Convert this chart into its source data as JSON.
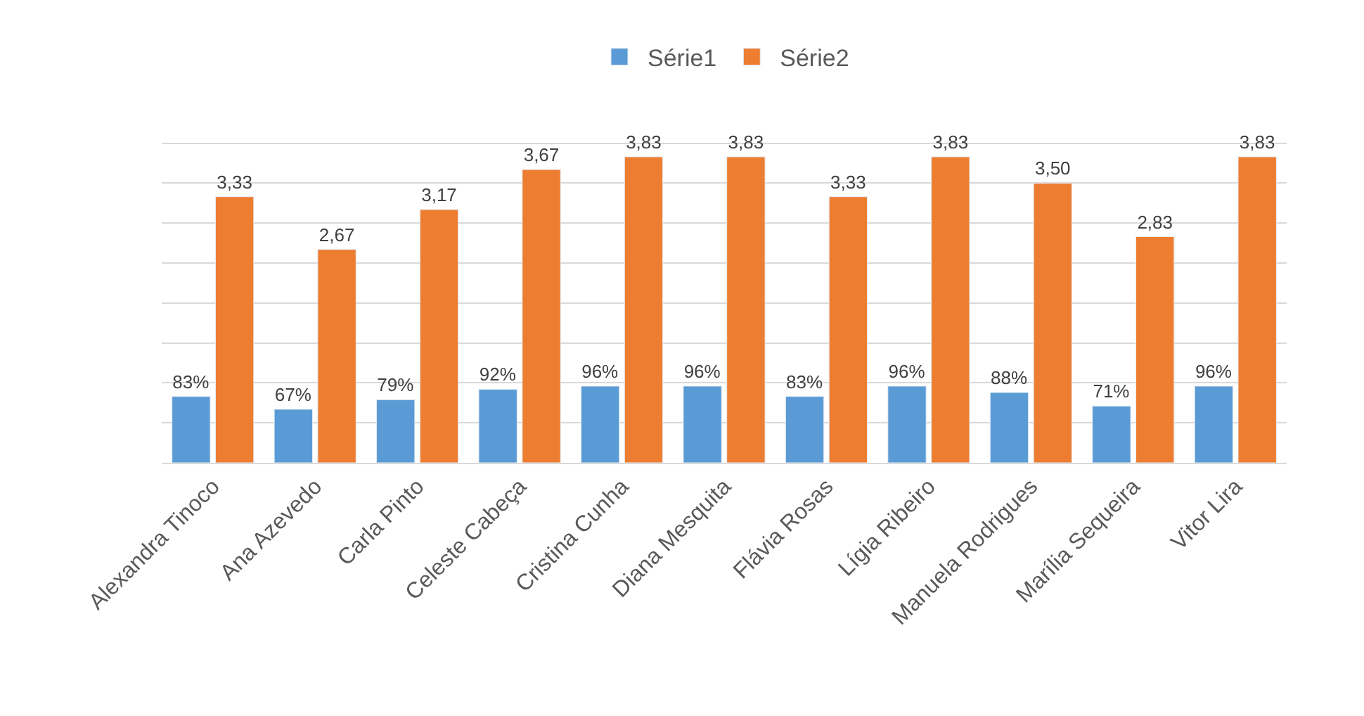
{
  "chart_data": {
    "type": "bar",
    "categories": [
      "Alexandra Tinoco",
      "Ana Azevedo",
      "Carla Pinto",
      "Celeste Cabeça",
      "Cristina Cunha",
      "Diana Mesquita",
      "Flávia Rosas",
      "Lígia Ribeiro",
      "Manuela Rodrigues",
      "Marília Sequeira",
      "Vitor Lira"
    ],
    "series": [
      {
        "name": "Série1",
        "color": "#5b9bd5",
        "values": [
          0.83,
          0.67,
          0.79,
          0.92,
          0.96,
          0.96,
          0.83,
          0.96,
          0.88,
          0.71,
          0.96
        ],
        "value_labels": [
          "83%",
          "67%",
          "79%",
          "92%",
          "96%",
          "96%",
          "83%",
          "96%",
          "88%",
          "71%",
          "96%"
        ]
      },
      {
        "name": "Série2",
        "color": "#ed7d31",
        "values": [
          3.33,
          2.67,
          3.17,
          3.67,
          3.83,
          3.83,
          3.33,
          3.83,
          3.5,
          2.83,
          3.83
        ],
        "value_labels": [
          "3,33",
          "2,67",
          "3,17",
          "3,67",
          "3,83",
          "3,83",
          "3,33",
          "3,83",
          "3,50",
          "2,83",
          "3,83"
        ]
      }
    ],
    "grid": true,
    "legend": "top",
    "tick_labels": "x"
  }
}
